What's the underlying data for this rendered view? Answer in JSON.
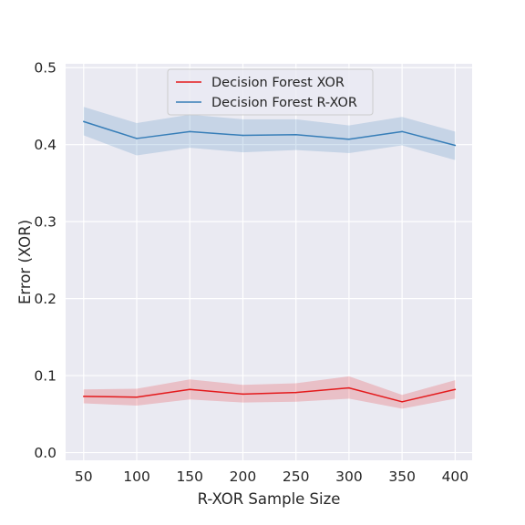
{
  "chart_data": {
    "type": "line",
    "title": "",
    "xlabel": "R-XOR Sample Size",
    "ylabel": "Error (XOR)",
    "x": [
      50,
      100,
      150,
      200,
      250,
      300,
      350,
      400
    ],
    "xticks": [
      "50",
      "100",
      "150",
      "200",
      "250",
      "300",
      "350",
      "400"
    ],
    "yticks": [
      "0.0",
      "0.1",
      "0.2",
      "0.3",
      "0.4",
      "0.5"
    ],
    "xlim": [
      33,
      416
    ],
    "ylim": [
      -0.01,
      0.505
    ],
    "grid": true,
    "legend_position": "top-center",
    "series": [
      {
        "name": "Decision Forest XOR",
        "color": "#e41a1c",
        "values": [
          0.073,
          0.072,
          0.082,
          0.076,
          0.078,
          0.084,
          0.066,
          0.082
        ],
        "lower": [
          0.064,
          0.061,
          0.069,
          0.065,
          0.066,
          0.07,
          0.057,
          0.07
        ],
        "upper": [
          0.082,
          0.083,
          0.095,
          0.088,
          0.09,
          0.099,
          0.075,
          0.094
        ]
      },
      {
        "name": "Decision Forest R-XOR",
        "color": "#377eb8",
        "values": [
          0.43,
          0.408,
          0.417,
          0.412,
          0.413,
          0.407,
          0.417,
          0.399
        ],
        "lower": [
          0.412,
          0.386,
          0.396,
          0.39,
          0.393,
          0.389,
          0.399,
          0.38
        ],
        "upper": [
          0.449,
          0.428,
          0.439,
          0.433,
          0.433,
          0.425,
          0.436,
          0.417
        ]
      }
    ]
  }
}
